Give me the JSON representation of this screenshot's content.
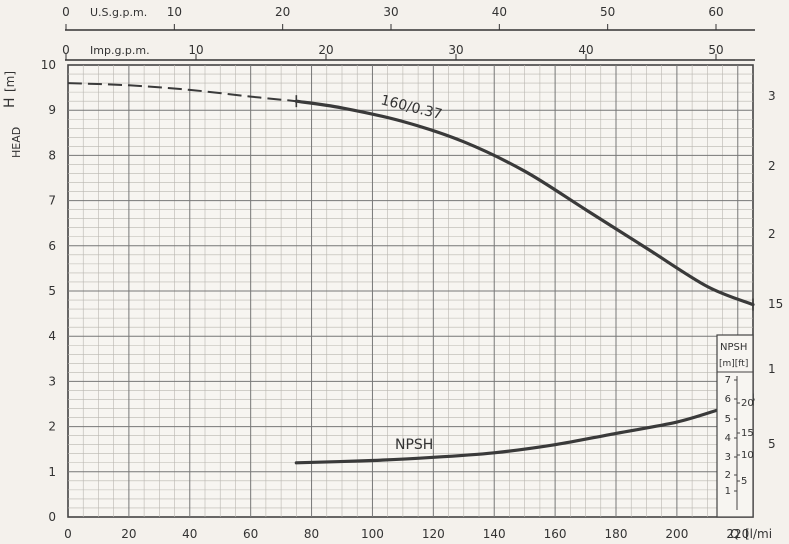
{
  "chart_data": {
    "type": "line",
    "title": "",
    "ylabel_head": "HEAD",
    "ylabel_h": "H",
    "ylabel_h_unit": "[m]",
    "xlabel": "Q",
    "xlabel_unit": "[l/mi",
    "xlim": [
      0,
      225
    ],
    "ylim": [
      0,
      10
    ],
    "x_ticks": [
      "0",
      "20",
      "40",
      "60",
      "80",
      "100",
      "120",
      "140",
      "160",
      "180",
      "200",
      "220"
    ],
    "y_ticks": [
      "0",
      "1",
      "2",
      "3",
      "4",
      "5",
      "6",
      "7",
      "8",
      "9",
      "10"
    ],
    "top_axis_us": {
      "label": "U.S.g.p.m.",
      "ticks": [
        "0",
        "10",
        "20",
        "30",
        "40",
        "50",
        "60"
      ]
    },
    "top_axis_imp": {
      "label": "Imp.g.p.m.",
      "ticks": [
        "0",
        "10",
        "20",
        "30",
        "40",
        "50"
      ]
    },
    "right_axis_ft": {
      "ticks": [
        "5",
        "1",
        "15",
        "2",
        "2",
        "3"
      ]
    },
    "grid": true,
    "series": [
      {
        "name": "160/0.37",
        "color": "#3a3a3a",
        "dashed_until_x": 75,
        "x": [
          0,
          20,
          40,
          60,
          75,
          90,
          110,
          130,
          150,
          170,
          190,
          210,
          225
        ],
        "y": [
          9.6,
          9.55,
          9.45,
          9.3,
          9.2,
          9.05,
          8.75,
          8.3,
          7.65,
          6.8,
          5.95,
          5.1,
          4.7
        ]
      },
      {
        "name": "NPSH",
        "color": "#3a3a3a",
        "x": [
          75,
          100,
          120,
          140,
          160,
          180,
          200,
          215,
          225
        ],
        "y": [
          1.2,
          1.25,
          1.32,
          1.42,
          1.6,
          1.85,
          2.1,
          2.4,
          2.6
        ]
      }
    ],
    "npsh_inset": {
      "title": "NPSH",
      "units": "[m][ft]",
      "m_ticks": [
        "7",
        "6",
        "5",
        "4",
        "3",
        "2",
        "1"
      ],
      "ft_ticks": [
        "20",
        "15",
        "10",
        "5"
      ]
    }
  }
}
